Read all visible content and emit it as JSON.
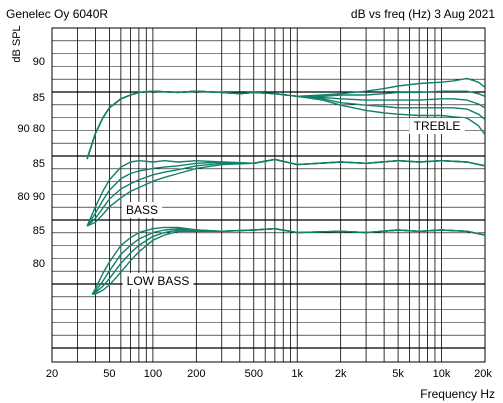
{
  "chart_data": {
    "type": "line",
    "title_left": "Genelec Oy 6040R",
    "title_right": "dB vs freq (Hz) 3 Aug 2021",
    "ylabel": "dB SPL",
    "xlabel": "Frequency Hz",
    "x_scale": "log",
    "xlim": [
      20,
      20000
    ],
    "x_ticks": [
      {
        "v": 20,
        "label": "20"
      },
      {
        "v": 50,
        "label": "50"
      },
      {
        "v": 100,
        "label": "100"
      },
      {
        "v": 200,
        "label": "200"
      },
      {
        "v": 500,
        "label": "500"
      },
      {
        "v": 1000,
        "label": "1k"
      },
      {
        "v": 2000,
        "label": "2k"
      },
      {
        "v": 5000,
        "label": "5k"
      },
      {
        "v": 10000,
        "label": "10k"
      },
      {
        "v": 20000,
        "label": "20k"
      }
    ],
    "x_grid": [
      30,
      40,
      50,
      60,
      70,
      80,
      90,
      100,
      200,
      300,
      400,
      500,
      600,
      700,
      800,
      900,
      1000,
      2000,
      3000,
      4000,
      5000,
      6000,
      7000,
      8000,
      9000,
      10000
    ],
    "y_tick_labels": [
      "90",
      "85",
      "90 80",
      "85",
      "80 90",
      "85",
      "80"
    ],
    "grid": true,
    "annotations": [
      "TREBLE",
      "BASS",
      "LOW BASS"
    ],
    "groups": [
      {
        "name": "TREBLE",
        "ref_db": 85,
        "series": [
          {
            "x": [
              35,
              40,
              45,
              50,
              60,
              70,
              80,
              100,
              150,
              200,
              300,
              400,
              500,
              700,
              1000,
              1500,
              2000,
              3000,
              4000,
              5000,
              7000,
              10000,
              12000,
              15000,
              18000,
              20000
            ],
            "y": [
              80,
              82,
              83.2,
              84,
              84.7,
              85,
              85.2,
              85.3,
              85.2,
              85.3,
              85.2,
              85.1,
              85.2,
              85.1,
              84.9,
              85.0,
              85.1,
              85.3,
              85.5,
              85.7,
              85.9,
              86.0,
              86.1,
              86.3,
              86.0,
              85.6
            ]
          },
          {
            "x": [
              35,
              40,
              45,
              50,
              60,
              70,
              80,
              100,
              150,
              200,
              300,
              400,
              500,
              700,
              1000,
              1500,
              2000,
              3000,
              4000,
              5000,
              7000,
              10000,
              12000,
              15000,
              18000,
              20000
            ],
            "y": [
              80,
              82,
              83.2,
              84,
              84.7,
              85,
              85.2,
              85.3,
              85.2,
              85.3,
              85.2,
              85.1,
              85.2,
              85.1,
              84.9,
              84.9,
              85.0,
              85.0,
              85.1,
              85.2,
              85.2,
              85.3,
              85.3,
              85.3,
              85.1,
              84.9
            ]
          },
          {
            "x": [
              35,
              40,
              45,
              50,
              60,
              70,
              80,
              100,
              150,
              200,
              300,
              400,
              500,
              700,
              1000,
              1500,
              2000,
              3000,
              4000,
              5000,
              7000,
              10000,
              12000,
              15000,
              18000,
              20000
            ],
            "y": [
              80,
              82,
              83.2,
              84,
              84.7,
              85,
              85.2,
              85.3,
              85.2,
              85.3,
              85.2,
              85.1,
              85.2,
              85.1,
              84.9,
              84.8,
              84.7,
              84.6,
              84.6,
              84.6,
              84.6,
              84.7,
              84.7,
              84.6,
              84.3,
              84.0
            ]
          },
          {
            "x": [
              35,
              40,
              45,
              50,
              60,
              70,
              80,
              100,
              150,
              200,
              300,
              400,
              500,
              700,
              1000,
              1500,
              2000,
              3000,
              4000,
              5000,
              7000,
              10000,
              12000,
              15000,
              18000,
              20000
            ],
            "y": [
              80,
              82,
              83.2,
              84,
              84.7,
              85,
              85.2,
              85.3,
              85.2,
              85.3,
              85.2,
              85.1,
              85.2,
              85.1,
              84.9,
              84.7,
              84.4,
              84.2,
              84.1,
              84.0,
              84.0,
              84.0,
              84.0,
              83.9,
              83.5,
              83.1
            ]
          },
          {
            "x": [
              35,
              40,
              45,
              50,
              60,
              70,
              80,
              100,
              150,
              200,
              300,
              400,
              500,
              700,
              1000,
              1500,
              2000,
              3000,
              4000,
              5000,
              7000,
              10000,
              12000,
              15000,
              18000,
              20000
            ],
            "y": [
              80,
              82,
              83.2,
              84,
              84.7,
              85,
              85.2,
              85.3,
              85.2,
              85.3,
              85.2,
              85.1,
              85.2,
              85.1,
              84.9,
              84.6,
              84.2,
              83.8,
              83.6,
              83.5,
              83.4,
              83.4,
              83.3,
              83.2,
              82.6,
              81.9
            ]
          }
        ]
      },
      {
        "name": "BASS",
        "ref_db": 85,
        "series": [
          {
            "x": [
              35,
              40,
              45,
              50,
              60,
              70,
              80,
              100,
              120,
              150,
              200,
              300,
              500,
              700,
              1000,
              2000,
              3000,
              5000,
              7000,
              10000,
              15000,
              20000
            ],
            "y": [
              80,
              81.5,
              82.7,
              83.6,
              84.6,
              85.0,
              85.1,
              85.0,
              85.1,
              85.0,
              85.1,
              85.0,
              84.9,
              85.2,
              84.8,
              85.0,
              84.9,
              85.1,
              85.0,
              85.1,
              85.0,
              84.7
            ]
          },
          {
            "x": [
              35,
              40,
              45,
              50,
              60,
              70,
              80,
              100,
              120,
              150,
              200,
              300,
              500,
              700,
              1000,
              2000,
              3000,
              5000,
              7000,
              10000,
              15000,
              20000
            ],
            "y": [
              80,
              81.0,
              82.0,
              82.8,
              83.7,
              84.1,
              84.3,
              84.5,
              84.6,
              84.7,
              84.9,
              85.0,
              84.9,
              85.2,
              84.8,
              85.0,
              84.9,
              85.1,
              85.0,
              85.1,
              85.0,
              84.7
            ]
          },
          {
            "x": [
              35,
              40,
              45,
              50,
              60,
              70,
              80,
              100,
              120,
              150,
              200,
              300,
              500,
              700,
              1000,
              2000,
              3000,
              5000,
              7000,
              10000,
              15000,
              20000
            ],
            "y": [
              80,
              80.6,
              81.4,
              82.1,
              82.9,
              83.3,
              83.6,
              84.0,
              84.2,
              84.4,
              84.7,
              84.9,
              84.9,
              85.2,
              84.8,
              85.0,
              84.9,
              85.1,
              85.0,
              85.1,
              85.0,
              84.7
            ]
          },
          {
            "x": [
              35,
              40,
              45,
              50,
              60,
              70,
              80,
              100,
              120,
              150,
              200,
              300,
              500,
              700,
              1000,
              2000,
              3000,
              5000,
              7000,
              10000,
              15000,
              20000
            ],
            "y": [
              80,
              80.3,
              80.9,
              81.5,
              82.2,
              82.7,
              83.0,
              83.5,
              83.8,
              84.1,
              84.5,
              84.8,
              84.9,
              85.2,
              84.8,
              85.0,
              84.9,
              85.1,
              85.0,
              85.1,
              85.0,
              84.7
            ]
          }
        ]
      },
      {
        "name": "LOW BASS",
        "ref_db": 85,
        "series": [
          {
            "x": [
              38,
              40,
              45,
              50,
              60,
              70,
              80,
              100,
              120,
              150,
              200,
              300,
              500,
              700,
              1000,
              2000,
              3000,
              5000,
              7000,
              10000,
              15000,
              20000
            ],
            "y": [
              80,
              80.4,
              81.6,
              82.5,
              83.8,
              84.4,
              84.8,
              85.1,
              85.2,
              85.2,
              85.0,
              84.9,
              85.0,
              85.1,
              84.8,
              84.9,
              84.8,
              85.0,
              84.9,
              85.0,
              84.9,
              84.6
            ]
          },
          {
            "x": [
              38,
              40,
              45,
              50,
              60,
              70,
              80,
              100,
              120,
              150,
              200,
              300,
              500,
              700,
              1000,
              2000,
              3000,
              5000,
              7000,
              10000,
              15000,
              20000
            ],
            "y": [
              80,
              80.2,
              81.0,
              81.8,
              83.1,
              83.8,
              84.3,
              84.8,
              85.0,
              85.1,
              85.0,
              84.9,
              85.0,
              85.1,
              84.8,
              84.9,
              84.8,
              85.0,
              84.9,
              85.0,
              84.9,
              84.6
            ]
          },
          {
            "x": [
              38,
              40,
              45,
              50,
              60,
              70,
              80,
              100,
              120,
              150,
              200,
              300,
              500,
              700,
              1000,
              2000,
              3000,
              5000,
              7000,
              10000,
              15000,
              20000
            ],
            "y": [
              80,
              80.1,
              80.6,
              81.2,
              82.4,
              83.2,
              83.8,
              84.5,
              84.8,
              85.0,
              85.0,
              84.9,
              85.0,
              85.1,
              84.8,
              84.9,
              84.8,
              85.0,
              84.9,
              85.0,
              84.9,
              84.6
            ]
          },
          {
            "x": [
              38,
              40,
              45,
              50,
              60,
              70,
              80,
              100,
              120,
              150,
              200,
              300,
              500,
              700,
              1000,
              2000,
              3000,
              5000,
              7000,
              10000,
              15000,
              20000
            ],
            "y": [
              80,
              80.0,
              80.3,
              80.7,
              81.7,
              82.6,
              83.3,
              84.2,
              84.6,
              84.9,
              84.9,
              84.9,
              85.0,
              85.1,
              84.8,
              84.9,
              84.8,
              85.0,
              84.9,
              85.0,
              84.9,
              84.6
            ]
          }
        ]
      }
    ],
    "colors": {
      "trace": "#11806a",
      "grid": "#000000",
      "background": "#ffffff"
    }
  }
}
